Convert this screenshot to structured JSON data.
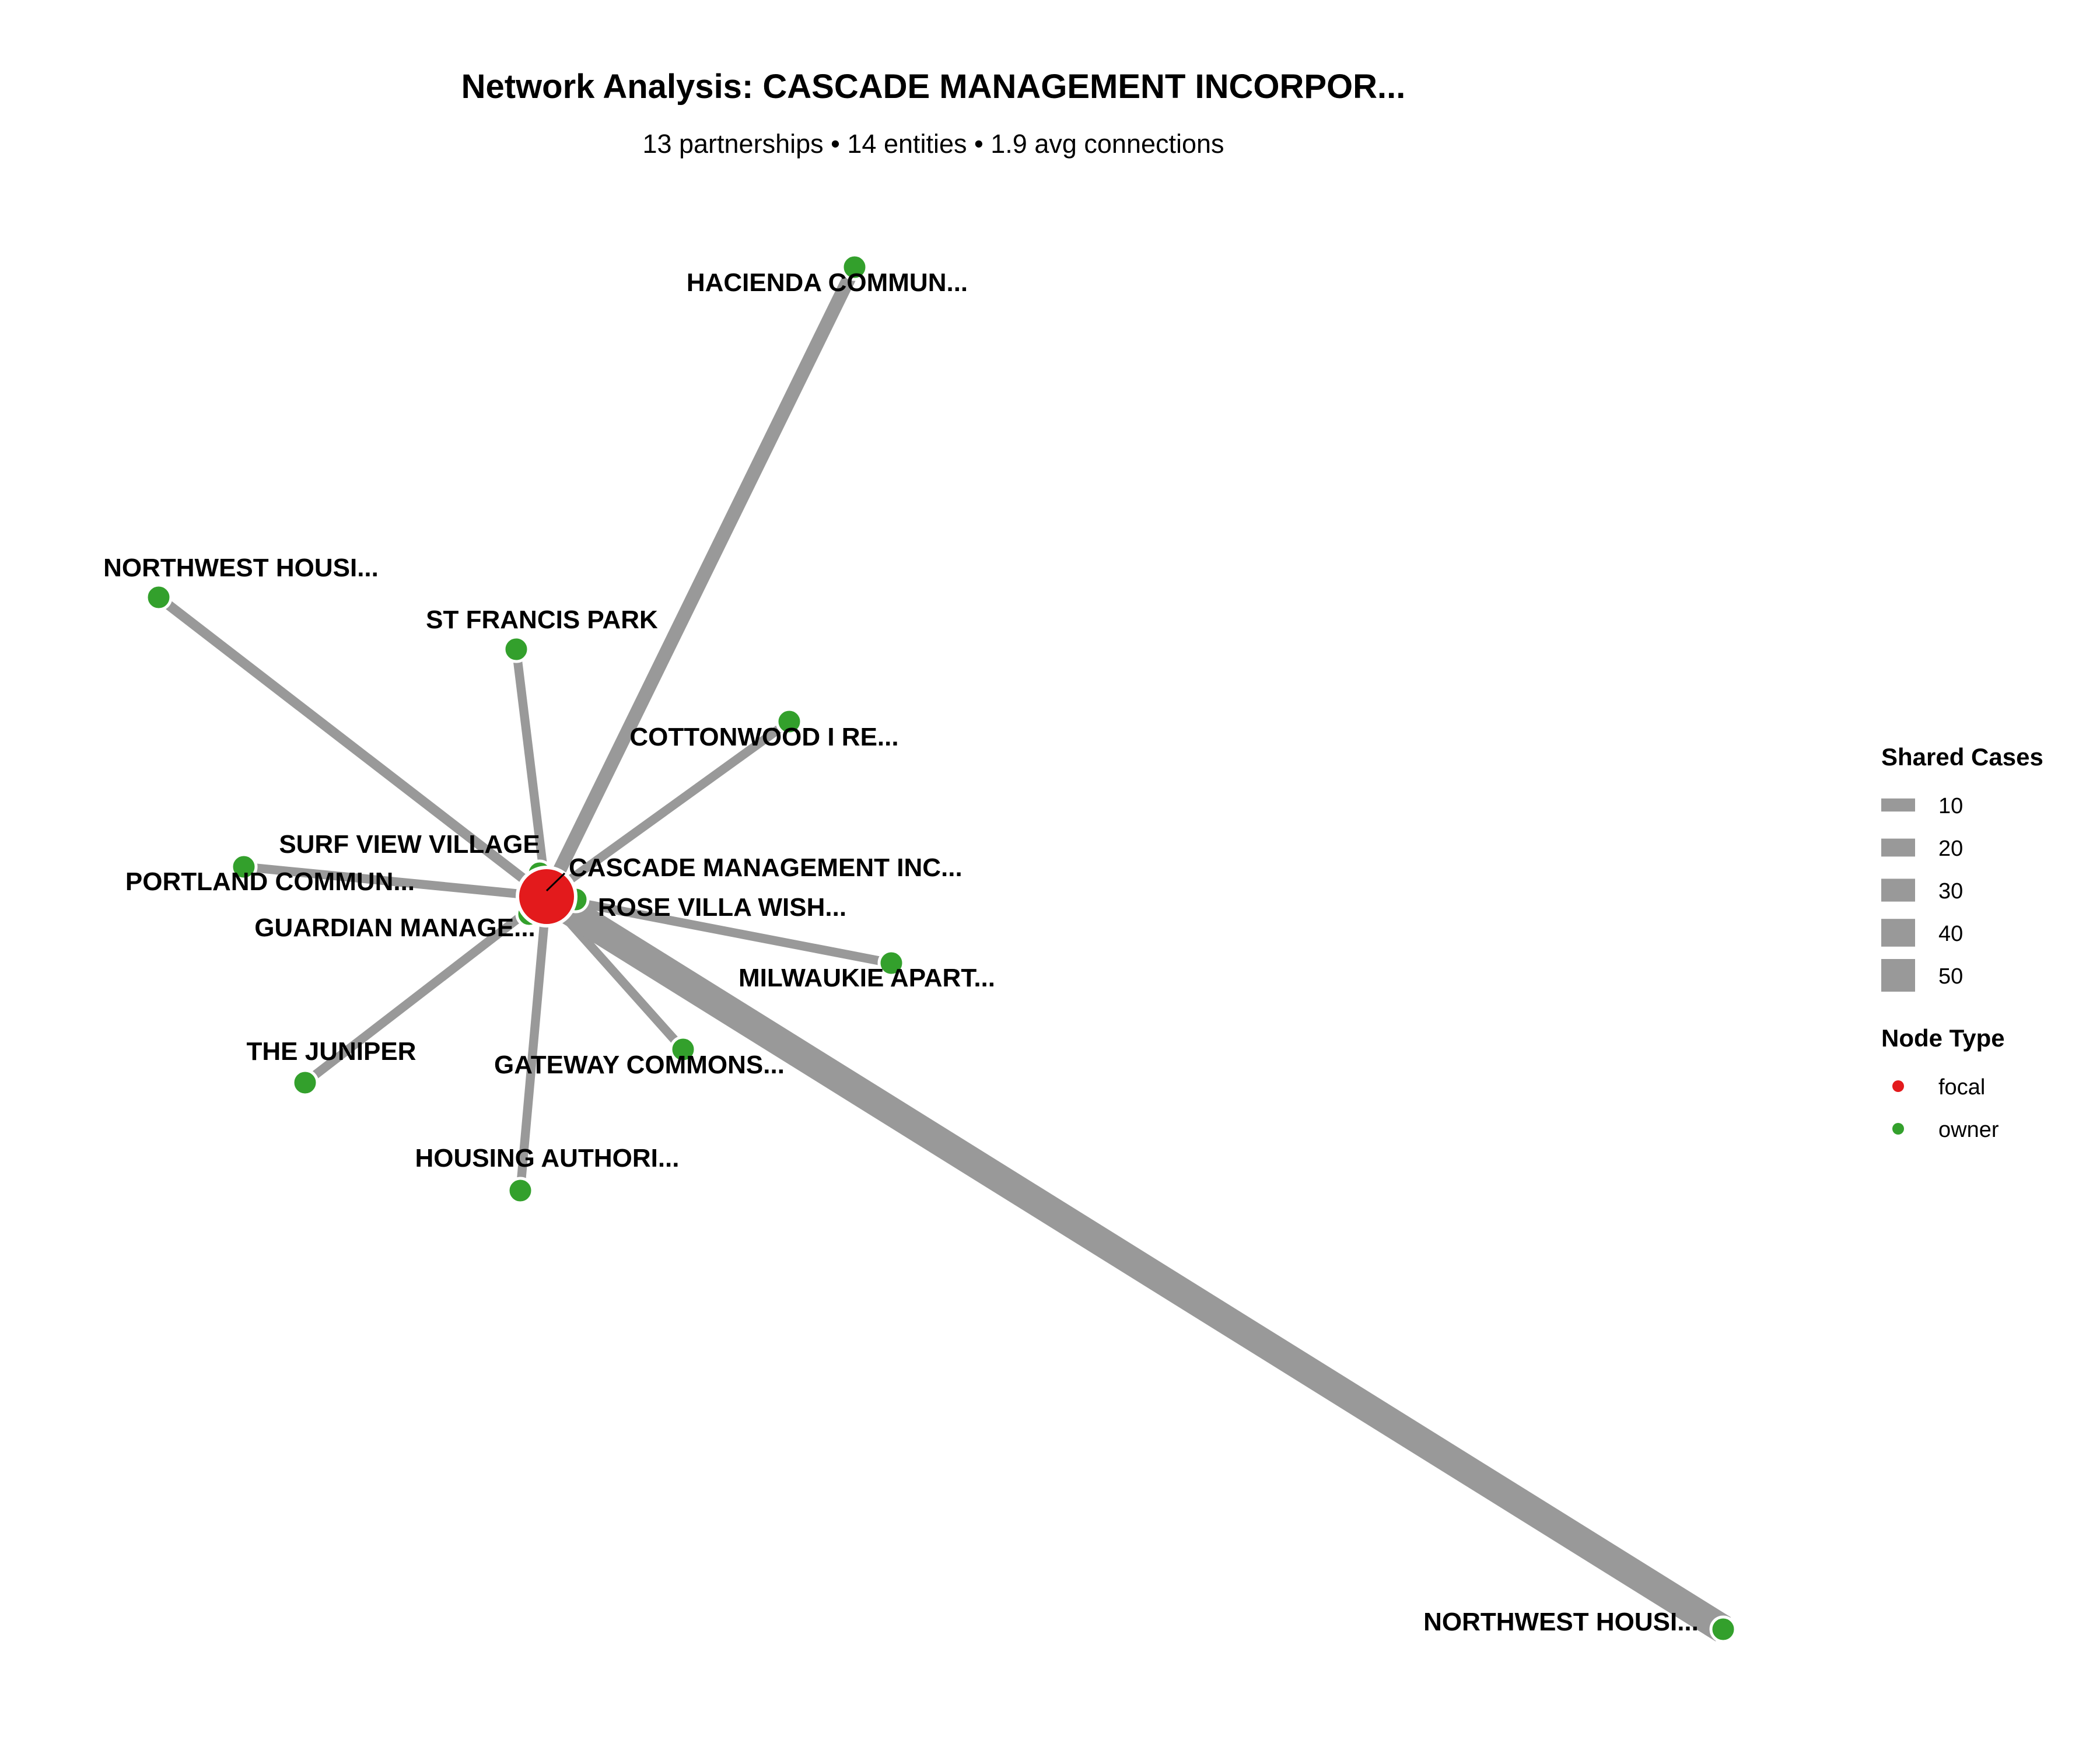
{
  "header": {
    "title": "Network Analysis: CASCADE MANAGEMENT INCORPOR...",
    "subtitle": "13 partnerships • 14 entities • 1.9 avg connections"
  },
  "colors": {
    "edge": "#999999",
    "focal": "#e31a1c",
    "owner": "#33a02c",
    "node_stroke": "#ffffff"
  },
  "network": {
    "focal": {
      "id": "cascade",
      "label": "CASCADE MANAGEMENT INC...",
      "type": "focal"
    },
    "nodes": [
      {
        "id": "hacienda",
        "label": "HACIENDA COMMUN...",
        "type": "owner"
      },
      {
        "id": "northwest1",
        "label": "NORTHWEST HOUSI...",
        "type": "owner"
      },
      {
        "id": "stfrancis",
        "label": "ST FRANCIS PARK",
        "type": "owner"
      },
      {
        "id": "cottonwood",
        "label": "COTTONWOOD I RE...",
        "type": "owner"
      },
      {
        "id": "surfview",
        "label": "SURF VIEW VILLAGE",
        "type": "owner"
      },
      {
        "id": "portland",
        "label": "PORTLAND COMMUN...",
        "type": "owner"
      },
      {
        "id": "rosevilla",
        "label": "ROSE VILLA WISH...",
        "type": "owner"
      },
      {
        "id": "guardian",
        "label": "GUARDIAN MANAGE...",
        "type": "owner"
      },
      {
        "id": "milwaukie",
        "label": "MILWAUKIE APART...",
        "type": "owner"
      },
      {
        "id": "juniper",
        "label": "THE JUNIPER",
        "type": "owner"
      },
      {
        "id": "gateway",
        "label": "GATEWAY COMMONS...",
        "type": "owner"
      },
      {
        "id": "housingauth",
        "label": "HOUSING AUTHORI...",
        "type": "owner"
      },
      {
        "id": "northwest2",
        "label": "NORTHWEST HOUSI...",
        "type": "owner"
      }
    ],
    "edges": [
      {
        "target": "hacienda",
        "shared_cases": 18
      },
      {
        "target": "northwest1",
        "shared_cases": 10
      },
      {
        "target": "stfrancis",
        "shared_cases": 8
      },
      {
        "target": "cottonwood",
        "shared_cases": 8
      },
      {
        "target": "surfview",
        "shared_cases": 5
      },
      {
        "target": "portland",
        "shared_cases": 8
      },
      {
        "target": "rosevilla",
        "shared_cases": 5
      },
      {
        "target": "guardian",
        "shared_cases": 3
      },
      {
        "target": "milwaukie",
        "shared_cases": 8
      },
      {
        "target": "juniper",
        "shared_cases": 8
      },
      {
        "target": "gateway",
        "shared_cases": 8
      },
      {
        "target": "housingauth",
        "shared_cases": 8
      },
      {
        "target": "northwest2",
        "shared_cases": 50
      }
    ]
  },
  "legend": {
    "edge_title": "Shared Cases",
    "edge_items": [
      {
        "label": "10",
        "value": 10
      },
      {
        "label": "20",
        "value": 20
      },
      {
        "label": "30",
        "value": 30
      },
      {
        "label": "40",
        "value": 40
      },
      {
        "label": "50",
        "value": 50
      }
    ],
    "node_title": "Node Type",
    "node_items": [
      {
        "label": "focal",
        "type": "focal"
      },
      {
        "label": "owner",
        "type": "owner"
      }
    ]
  }
}
